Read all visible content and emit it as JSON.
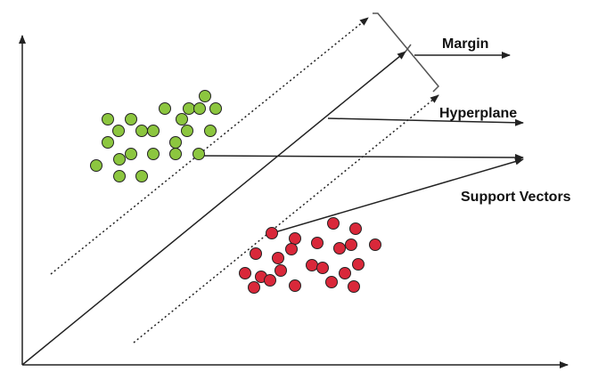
{
  "labels": {
    "margin": "Margin",
    "hyperplane": "Hyperplane",
    "support_vectors": "Support Vectors"
  }
}
